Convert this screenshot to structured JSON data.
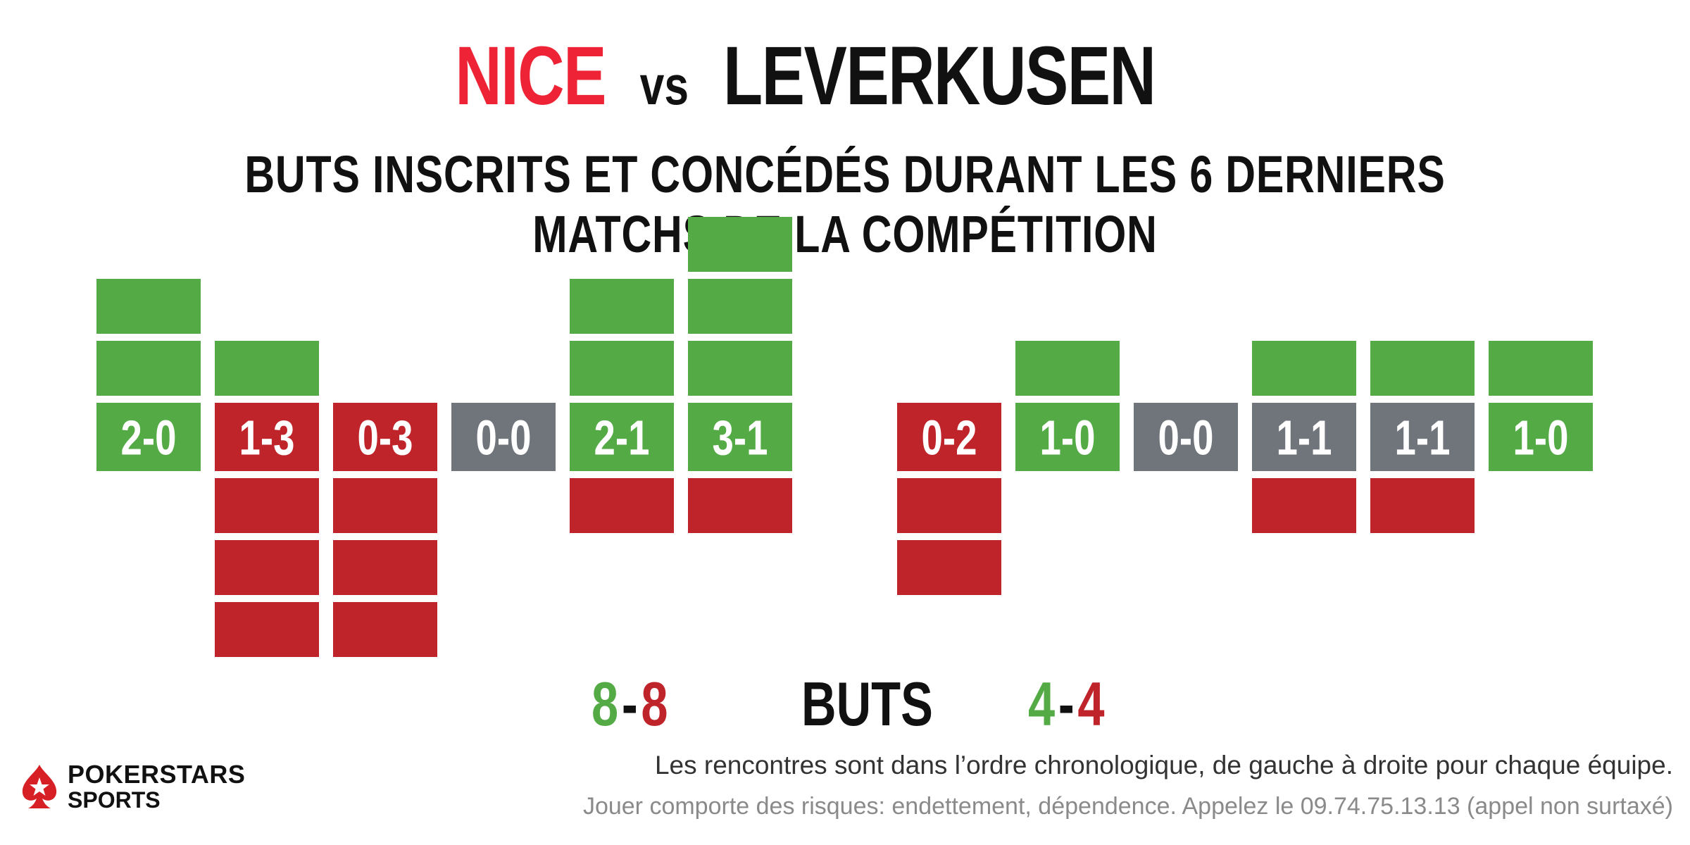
{
  "colors": {
    "green": "#54ab46",
    "red": "#c0242b",
    "gray": "#6f757b",
    "team_a": "#ee2436",
    "team_b": "#111111"
  },
  "header": {
    "team_a": "NICE",
    "vs": "vs",
    "team_b": "LEVERKUSEN"
  },
  "subtitle": "BUTS INSCRITS ET CONCÉDÉS DURANT LES 6 DERNIERS MATCHS DE LA COMPÉTITION",
  "chart_data": {
    "type": "bar",
    "title": "BUTS INSCRITS ET CONCÉDÉS DURANT LES 6 DERNIERS MATCHS DE LA COMPÉTITION",
    "series_meaning": "green blocks above = goals scored, red blocks below = goals conceded",
    "teams": [
      {
        "name": "NICE",
        "matches": [
          {
            "score": "2-0",
            "scored": 2,
            "conceded": 0
          },
          {
            "score": "1-3",
            "scored": 1,
            "conceded": 3
          },
          {
            "score": "0-3",
            "scored": 0,
            "conceded": 3
          },
          {
            "score": "0-0",
            "scored": 0,
            "conceded": 0
          },
          {
            "score": "2-1",
            "scored": 2,
            "conceded": 1
          },
          {
            "score": "3-1",
            "scored": 3,
            "conceded": 1
          }
        ],
        "total_scored": "8",
        "total_conceded": "8"
      },
      {
        "name": "LEVERKUSEN",
        "matches": [
          {
            "score": "0-2",
            "scored": 0,
            "conceded": 2
          },
          {
            "score": "1-0",
            "scored": 1,
            "conceded": 0
          },
          {
            "score": "0-0",
            "scored": 0,
            "conceded": 0
          },
          {
            "score": "1-1",
            "scored": 1,
            "conceded": 1
          },
          {
            "score": "1-1",
            "scored": 1,
            "conceded": 1
          },
          {
            "score": "1-0",
            "scored": 1,
            "conceded": 0
          }
        ],
        "total_scored": "4",
        "total_conceded": "4"
      }
    ]
  },
  "totals": {
    "label": "BUTS",
    "dash": "-"
  },
  "footer": {
    "logo_line1": "POKERSTARS",
    "logo_line2": "SPORTS",
    "note": "Les rencontres sont dans l’ordre chronologique, de gauche à droite pour chaque équipe.",
    "disclaimer": "Jouer comporte des risques: endettement, dépendence. Appelez le 09.74.75.13.13 (appel non surtaxé)"
  }
}
